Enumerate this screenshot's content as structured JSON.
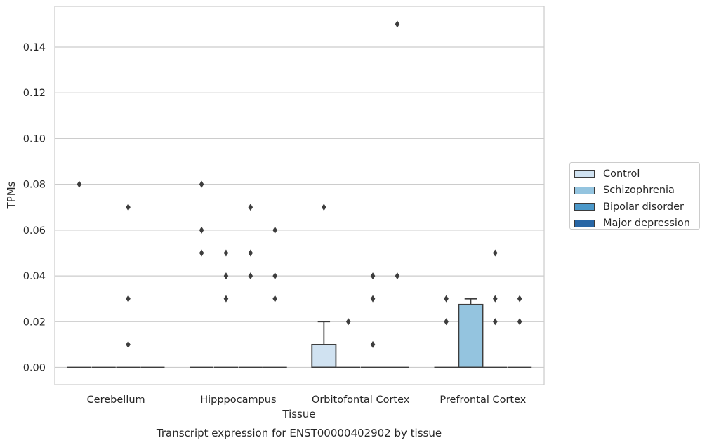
{
  "chart_data": {
    "type": "box",
    "title": "Transcript expression for ENST00000402902 by tissue",
    "xlabel": "Tissue",
    "ylabel": "TPMs",
    "ylim": [
      -0.0075,
      0.157
    ],
    "yticks": [
      "0.00",
      "0.02",
      "0.04",
      "0.06",
      "0.08",
      "0.10",
      "0.12",
      "0.14"
    ],
    "grid": true,
    "legend_position": "right",
    "categories": [
      "Cerebellum",
      "Hipppocampus",
      "Orbitofontal Cortex",
      "Prefrontal Cortex"
    ],
    "series": [
      {
        "name": "Control",
        "color": "#d0e2f1",
        "boxes": [
          {
            "q1": 0,
            "median": 0,
            "q3": 0,
            "whisker_low": 0,
            "whisker_high": 0,
            "outliers": [
              0.08
            ]
          },
          {
            "q1": 0,
            "median": 0,
            "q3": 0,
            "whisker_low": 0,
            "whisker_high": 0,
            "outliers": [
              0.08,
              0.06,
              0.05
            ]
          },
          {
            "q1": 0,
            "median": 0,
            "q3": 0.01,
            "whisker_low": 0,
            "whisker_high": 0.02,
            "outliers": [
              0.07
            ]
          },
          {
            "q1": 0,
            "median": 0,
            "q3": 0,
            "whisker_low": 0,
            "whisker_high": 0,
            "outliers": [
              0.03,
              0.02
            ]
          }
        ]
      },
      {
        "name": "Schizophrenia",
        "color": "#94c4df",
        "boxes": [
          {
            "q1": 0,
            "median": 0,
            "q3": 0,
            "whisker_low": 0,
            "whisker_high": 0,
            "outliers": []
          },
          {
            "q1": 0,
            "median": 0,
            "q3": 0,
            "whisker_low": 0,
            "whisker_high": 0,
            "outliers": [
              0.05,
              0.04,
              0.03
            ]
          },
          {
            "q1": 0,
            "median": 0,
            "q3": 0,
            "whisker_low": 0,
            "whisker_high": 0,
            "outliers": [
              0.02
            ]
          },
          {
            "q1": 0,
            "median": 0,
            "q3": 0.0275,
            "whisker_low": 0,
            "whisker_high": 0.03,
            "outliers": []
          }
        ]
      },
      {
        "name": "Bipolar disorder",
        "color": "#4b98c9",
        "boxes": [
          {
            "q1": 0,
            "median": 0,
            "q3": 0,
            "whisker_low": 0,
            "whisker_high": 0,
            "outliers": [
              0.07,
              0.03,
              0.01
            ]
          },
          {
            "q1": 0,
            "median": 0,
            "q3": 0,
            "whisker_low": 0,
            "whisker_high": 0,
            "outliers": [
              0.07,
              0.05,
              0.04
            ]
          },
          {
            "q1": 0,
            "median": 0,
            "q3": 0,
            "whisker_low": 0,
            "whisker_high": 0,
            "outliers": [
              0.04,
              0.03,
              0.01
            ]
          },
          {
            "q1": 0,
            "median": 0,
            "q3": 0,
            "whisker_low": 0,
            "whisker_high": 0,
            "outliers": [
              0.05,
              0.03,
              0.02
            ]
          }
        ]
      },
      {
        "name": "Major depression",
        "color": "#2866a5",
        "boxes": [
          {
            "q1": 0,
            "median": 0,
            "q3": 0,
            "whisker_low": 0,
            "whisker_high": 0,
            "outliers": []
          },
          {
            "q1": 0,
            "median": 0,
            "q3": 0,
            "whisker_low": 0,
            "whisker_high": 0,
            "outliers": [
              0.06,
              0.04,
              0.03
            ]
          },
          {
            "q1": 0,
            "median": 0,
            "q3": 0,
            "whisker_low": 0,
            "whisker_high": 0,
            "outliers": [
              0.15,
              0.04
            ]
          },
          {
            "q1": 0,
            "median": 0,
            "q3": 0,
            "whisker_low": 0,
            "whisker_high": 0,
            "outliers": [
              0.03,
              0.02
            ]
          }
        ]
      }
    ]
  }
}
